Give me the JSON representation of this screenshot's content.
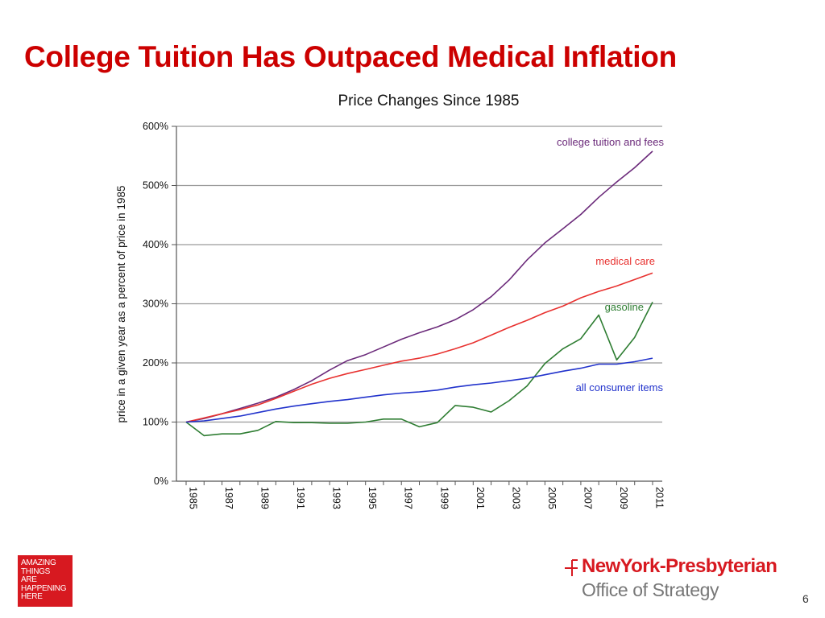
{
  "slide": {
    "title": "College Tuition Has Outpaced Medical Inflation",
    "page_number": "6"
  },
  "badge": {
    "lines": [
      "AMAZING",
      "THINGS",
      "ARE",
      "HAPPENING",
      "HERE"
    ],
    "color": "#d71920"
  },
  "logo": {
    "name": "NewYork-Presbyterian",
    "subtitle": "Office of Strategy",
    "color": "#d71920"
  },
  "chart_data": {
    "type": "line",
    "title": "Price Changes Since 1985",
    "xlabel": "",
    "ylabel": "price in a given year as a percent of price in 1985",
    "ylim": [
      0,
      600
    ],
    "yticks": [
      0,
      100,
      200,
      300,
      400,
      500,
      600
    ],
    "ytick_labels": [
      "0%",
      "100%",
      "200%",
      "300%",
      "400%",
      "500%",
      "600%"
    ],
    "xtick_labels": [
      "1985",
      "1987",
      "1989",
      "1991",
      "1993",
      "1995",
      "1997",
      "1999",
      "2001",
      "2003",
      "2005",
      "2007",
      "2009",
      "2011"
    ],
    "x": [
      1985,
      1986,
      1987,
      1988,
      1989,
      1990,
      1991,
      1992,
      1993,
      1994,
      1995,
      1996,
      1997,
      1998,
      1999,
      2000,
      2001,
      2002,
      2003,
      2004,
      2005,
      2006,
      2007,
      2008,
      2009,
      2010,
      2011
    ],
    "grid": true,
    "series": [
      {
        "name": "college tuition and fees",
        "color": "#6b2a7a",
        "values": [
          100,
          106,
          114,
          123,
          132,
          142,
          155,
          170,
          188,
          204,
          214,
          227,
          240,
          251,
          261,
          273,
          290,
          312,
          340,
          374,
          403,
          427,
          451,
          480,
          506,
          530,
          558
        ]
      },
      {
        "name": "medical care",
        "color": "#e8312f",
        "values": [
          100,
          107,
          114,
          121,
          129,
          140,
          152,
          164,
          174,
          182,
          189,
          196,
          203,
          208,
          215,
          224,
          234,
          247,
          260,
          272,
          285,
          296,
          310,
          321,
          330,
          341,
          352
        ]
      },
      {
        "name": "gasoline",
        "color": "#2e7d32",
        "values": [
          100,
          77,
          80,
          80,
          86,
          101,
          99,
          99,
          98,
          98,
          100,
          105,
          105,
          92,
          99,
          128,
          125,
          117,
          136,
          161,
          199,
          224,
          241,
          281,
          205,
          243,
          303
        ]
      },
      {
        "name": "all consumer items",
        "color": "#2233cc",
        "values": [
          100,
          102,
          106,
          110,
          116,
          122,
          127,
          131,
          135,
          138,
          142,
          146,
          149,
          151,
          154,
          159,
          163,
          166,
          170,
          174,
          180,
          186,
          191,
          198,
          198,
          202,
          208
        ]
      }
    ]
  }
}
